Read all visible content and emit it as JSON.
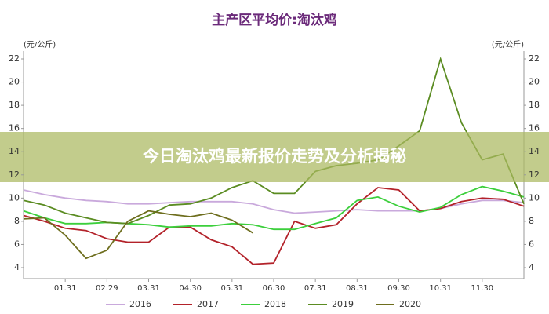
{
  "chart_data": {
    "type": "line",
    "title": "主产区平均价:淘汰鸡",
    "ylabel": "(元/公斤)",
    "y2label": "(元/公斤)",
    "categories": [
      null,
      null,
      "01.31",
      null,
      "02.29",
      null,
      "03.31",
      null,
      "04.30",
      null,
      "05.31",
      null,
      "06.30",
      null,
      "07.31",
      null,
      "08.31",
      null,
      "09.30",
      null,
      "10.31",
      null,
      "11.30",
      null,
      null
    ],
    "ylim": [
      4,
      22
    ],
    "yticks": [
      4,
      6,
      8,
      10,
      12,
      14,
      16,
      18,
      20,
      22
    ],
    "grid": false,
    "series": [
      {
        "name": "2016",
        "color": "#c9a9dc",
        "values": [
          10.7,
          10.3,
          10.0,
          9.8,
          9.7,
          9.5,
          9.5,
          9.6,
          9.7,
          9.7,
          9.7,
          9.5,
          9.0,
          8.7,
          8.8,
          8.9,
          9.0,
          8.9,
          8.9,
          8.9,
          9.1,
          9.5,
          9.8,
          9.8,
          9.6
        ]
      },
      {
        "name": "2017",
        "color": "#b3222a",
        "values": [
          8.5,
          8.0,
          7.4,
          7.2,
          6.5,
          6.2,
          6.2,
          7.5,
          7.5,
          6.4,
          5.8,
          4.3,
          4.4,
          8.0,
          7.4,
          7.7,
          9.5,
          10.9,
          10.7,
          8.9,
          9.1,
          9.7,
          10.0,
          9.9,
          9.3
        ]
      },
      {
        "name": "2018",
        "color": "#3ccf3c",
        "values": [
          8.9,
          8.3,
          7.8,
          7.8,
          7.9,
          7.8,
          7.7,
          7.5,
          7.6,
          7.6,
          7.8,
          7.7,
          7.3,
          7.3,
          7.8,
          8.3,
          9.8,
          10.1,
          9.3,
          8.8,
          9.2,
          10.3,
          11.0,
          10.6,
          10.1
        ]
      },
      {
        "name": "2019",
        "color": "#5b8c22",
        "values": [
          9.8,
          9.4,
          8.7,
          8.3,
          7.9,
          7.8,
          8.5,
          9.4,
          9.5,
          10.0,
          10.9,
          11.5,
          10.4,
          10.4,
          12.3,
          12.8,
          13.0,
          13.3,
          14.5,
          15.8,
          22.0,
          16.5,
          13.3,
          13.8,
          9.5
        ]
      },
      {
        "name": "2020",
        "color": "#6e6e1e",
        "values": [
          8.2,
          8.3,
          6.8,
          4.8,
          5.5,
          8.0,
          8.9,
          8.6,
          8.4,
          8.7,
          8.1,
          7.0,
          null,
          null,
          null,
          null,
          null,
          null,
          null,
          null,
          null,
          null,
          null,
          null,
          null
        ]
      }
    ]
  },
  "banner": {
    "text": "今日淘汰鸡最新报价走势及分析揭秘"
  }
}
